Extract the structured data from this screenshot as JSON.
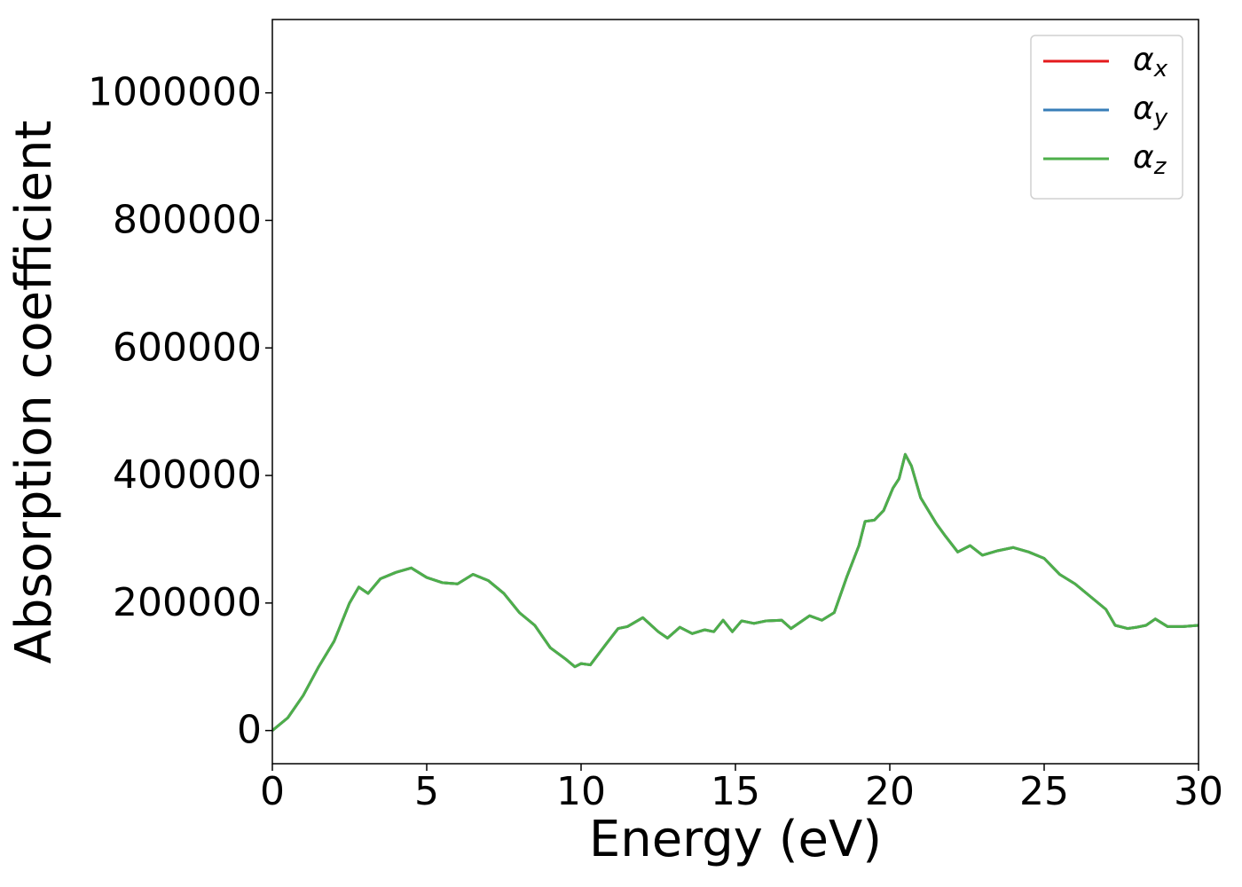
{
  "chart_data": {
    "type": "line",
    "x_label": "Energy (eV)",
    "y_label": "Absorption coefficient",
    "x": [
      0,
      0.5,
      1.0,
      1.5,
      2.0,
      2.5,
      2.8,
      3.1,
      3.5,
      4.0,
      4.5,
      5.0,
      5.5,
      6.0,
      6.5,
      7.0,
      7.5,
      8.0,
      8.5,
      9.0,
      9.5,
      9.8,
      10.0,
      10.3,
      10.8,
      11.2,
      11.5,
      12.0,
      12.5,
      12.8,
      13.2,
      13.6,
      14.0,
      14.3,
      14.6,
      14.9,
      15.2,
      15.6,
      16.0,
      16.5,
      16.8,
      17.4,
      17.8,
      18.2,
      18.6,
      19.0,
      19.2,
      19.5,
      19.8,
      20.1,
      20.3,
      20.5,
      20.7,
      21.0,
      21.5,
      21.8,
      22.2,
      22.6,
      23.0,
      23.5,
      24.0,
      24.5,
      25.0,
      25.5,
      26.0,
      26.5,
      27.0,
      27.3,
      27.7,
      28.0,
      28.3,
      28.6,
      29.0,
      29.5,
      30.0
    ],
    "series": [
      {
        "name": "αx",
        "color": "#e41a1c",
        "values": [
          0,
          20000,
          55000,
          100000,
          140000,
          200000,
          225000,
          215000,
          238000,
          248000,
          255000,
          240000,
          232000,
          230000,
          245000,
          235000,
          215000,
          185000,
          165000,
          130000,
          112000,
          100000,
          105000,
          103000,
          135000,
          160000,
          163000,
          177000,
          155000,
          145000,
          162000,
          152000,
          158000,
          155000,
          173000,
          155000,
          172000,
          168000,
          172000,
          173000,
          160000,
          180000,
          173000,
          185000,
          240000,
          290000,
          328000,
          330000,
          345000,
          380000,
          395000,
          433000,
          415000,
          365000,
          325000,
          305000,
          280000,
          290000,
          275000,
          282000,
          287000,
          280000,
          270000,
          245000,
          230000,
          210000,
          190000,
          165000,
          160000,
          162000,
          165000,
          175000,
          163000,
          163000,
          165000
        ]
      },
      {
        "name": "αy",
        "color": "#377eb8",
        "values": [
          0,
          20000,
          55000,
          100000,
          140000,
          200000,
          225000,
          215000,
          238000,
          248000,
          255000,
          240000,
          232000,
          230000,
          245000,
          235000,
          215000,
          185000,
          165000,
          130000,
          112000,
          100000,
          105000,
          103000,
          135000,
          160000,
          163000,
          177000,
          155000,
          145000,
          162000,
          152000,
          158000,
          155000,
          173000,
          155000,
          172000,
          168000,
          172000,
          173000,
          160000,
          180000,
          173000,
          185000,
          240000,
          290000,
          328000,
          330000,
          345000,
          380000,
          395000,
          433000,
          415000,
          365000,
          325000,
          305000,
          280000,
          290000,
          275000,
          282000,
          287000,
          280000,
          270000,
          245000,
          230000,
          210000,
          190000,
          165000,
          160000,
          162000,
          165000,
          175000,
          163000,
          163000,
          165000
        ]
      },
      {
        "name": "αz",
        "color": "#4daf4a",
        "values": [
          0,
          20000,
          55000,
          100000,
          140000,
          200000,
          225000,
          215000,
          238000,
          248000,
          255000,
          240000,
          232000,
          230000,
          245000,
          235000,
          215000,
          185000,
          165000,
          130000,
          112000,
          100000,
          105000,
          103000,
          135000,
          160000,
          163000,
          177000,
          155000,
          145000,
          162000,
          152000,
          158000,
          155000,
          173000,
          155000,
          172000,
          168000,
          172000,
          173000,
          160000,
          180000,
          173000,
          185000,
          240000,
          290000,
          328000,
          330000,
          345000,
          380000,
          395000,
          433000,
          415000,
          365000,
          325000,
          305000,
          280000,
          290000,
          275000,
          282000,
          287000,
          280000,
          270000,
          245000,
          230000,
          210000,
          190000,
          165000,
          160000,
          162000,
          165000,
          175000,
          163000,
          163000,
          165000
        ]
      }
    ],
    "xlim": [
      0,
      30
    ],
    "xticks": [
      0,
      5,
      10,
      15,
      20,
      25,
      30
    ],
    "ylim": [
      -52000,
      1115000
    ],
    "yticks": [
      0,
      200000,
      400000,
      600000,
      800000,
      1000000
    ],
    "grid": false,
    "legend": "upper right"
  }
}
